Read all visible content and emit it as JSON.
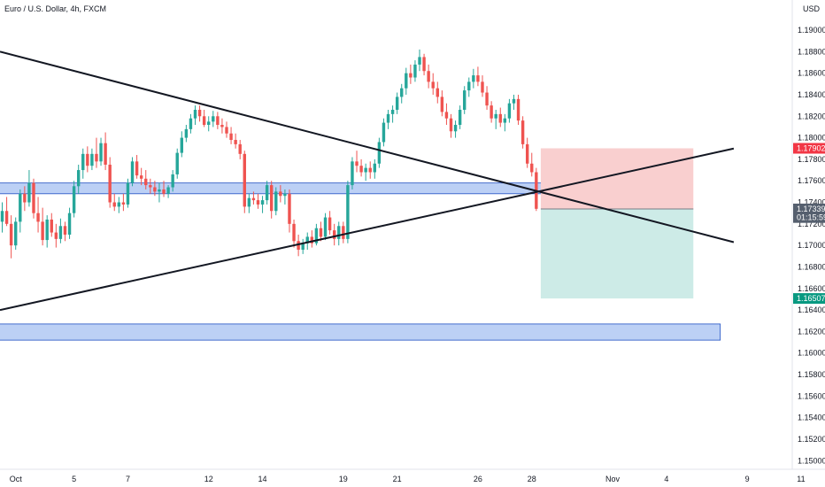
{
  "header": {
    "symbol_title": "Euro / U.S. Dollar, 4h, FXCM",
    "currency": "USD"
  },
  "colors": {
    "up": "#26a69a",
    "down": "#ef5350",
    "zone_fill": "#bcd0f5",
    "zone_stroke": "#1e4fc2",
    "stop_fill": "#f9cfcf",
    "target_fill": "#cdebe7",
    "trendline": "#131722",
    "price_tag": "#555f6e",
    "stop_tag": "#f23645",
    "target_tag": "#089981"
  },
  "chart_data": {
    "type": "candlestick",
    "instrument": "EURUSD",
    "timeframe": "4h",
    "y_axis": {
      "min": 1.1492,
      "max": 1.1928,
      "ticks": [
        1.19,
        1.188,
        1.186,
        1.184,
        1.182,
        1.18,
        1.178,
        1.176,
        1.174,
        1.172,
        1.17,
        1.168,
        1.166,
        1.164,
        1.162,
        1.16,
        1.158,
        1.156,
        1.154,
        1.152,
        1.15
      ],
      "tick_labels": [
        "1.19000",
        "1.18800",
        "1.18600",
        "1.18400",
        "1.18200",
        "1.18000",
        "1.17800",
        "1.17600",
        "1.17400",
        "1.17200",
        "1.17000",
        "1.16800",
        "1.16600",
        "1.16400",
        "1.16200",
        "1.16000",
        "1.15800",
        "1.15600",
        "1.15400",
        "1.15200",
        "1.15000"
      ]
    },
    "x_axis": {
      "min": 0,
      "max": 178,
      "ticks": [
        {
          "label": "Oct",
          "bar": 3
        },
        {
          "label": "5",
          "bar": 16
        },
        {
          "label": "7",
          "bar": 28
        },
        {
          "label": "12",
          "bar": 46
        },
        {
          "label": "14",
          "bar": 58
        },
        {
          "label": "19",
          "bar": 76
        },
        {
          "label": "21",
          "bar": 88
        },
        {
          "label": "26",
          "bar": 106
        },
        {
          "label": "28",
          "bar": 118
        },
        {
          "label": "Nov",
          "bar": 136
        },
        {
          "label": "4",
          "bar": 148
        },
        {
          "label": "9",
          "bar": 166
        },
        {
          "label": "11",
          "bar": 178
        }
      ]
    },
    "candles": [
      [
        1.1722,
        1.174,
        1.1712,
        1.1732
      ],
      [
        1.1732,
        1.1745,
        1.1718,
        1.172
      ],
      [
        1.172,
        1.1728,
        1.1688,
        1.17
      ],
      [
        1.17,
        1.1726,
        1.1696,
        1.1722
      ],
      [
        1.1722,
        1.1752,
        1.1712,
        1.1748
      ],
      [
        1.1748,
        1.1755,
        1.1732,
        1.174
      ],
      [
        1.174,
        1.177,
        1.1736,
        1.1758
      ],
      [
        1.1758,
        1.1762,
        1.1725,
        1.173
      ],
      [
        1.173,
        1.1745,
        1.1712,
        1.1722
      ],
      [
        1.1722,
        1.1735,
        1.17,
        1.1705
      ],
      [
        1.1705,
        1.1728,
        1.1698,
        1.1724
      ],
      [
        1.1724,
        1.173,
        1.1708,
        1.1712
      ],
      [
        1.1712,
        1.172,
        1.1698,
        1.1706
      ],
      [
        1.1706,
        1.1725,
        1.1702,
        1.1718
      ],
      [
        1.1718,
        1.1722,
        1.1704,
        1.171
      ],
      [
        1.171,
        1.1735,
        1.1706,
        1.173
      ],
      [
        1.173,
        1.176,
        1.1726,
        1.1755
      ],
      [
        1.1755,
        1.1775,
        1.1748,
        1.177
      ],
      [
        1.177,
        1.179,
        1.1762,
        1.1785
      ],
      [
        1.1785,
        1.1792,
        1.1768,
        1.1774
      ],
      [
        1.1774,
        1.179,
        1.177,
        1.1785
      ],
      [
        1.1785,
        1.18,
        1.1772,
        1.1778
      ],
      [
        1.1778,
        1.18,
        1.1774,
        1.1795
      ],
      [
        1.1795,
        1.1805,
        1.177,
        1.1775
      ],
      [
        1.1775,
        1.1782,
        1.1735,
        1.174
      ],
      [
        1.174,
        1.1748,
        1.1732,
        1.1736
      ],
      [
        1.1736,
        1.1745,
        1.173,
        1.174
      ],
      [
        1.174,
        1.1748,
        1.1732,
        1.1738
      ],
      [
        1.1738,
        1.1762,
        1.1735,
        1.1758
      ],
      [
        1.1758,
        1.1782,
        1.1755,
        1.1778
      ],
      [
        1.1778,
        1.1784,
        1.1762,
        1.1765
      ],
      [
        1.1765,
        1.1772,
        1.1756,
        1.1762
      ],
      [
        1.1762,
        1.177,
        1.1752,
        1.1756
      ],
      [
        1.1756,
        1.1762,
        1.1748,
        1.1754
      ],
      [
        1.1754,
        1.176,
        1.1746,
        1.175
      ],
      [
        1.175,
        1.1758,
        1.174,
        1.1752
      ],
      [
        1.1752,
        1.176,
        1.1745,
        1.1748
      ],
      [
        1.1748,
        1.1756,
        1.1744,
        1.1754
      ],
      [
        1.1754,
        1.177,
        1.175,
        1.1766
      ],
      [
        1.1766,
        1.179,
        1.1762,
        1.1786
      ],
      [
        1.1786,
        1.1806,
        1.1782,
        1.18
      ],
      [
        1.18,
        1.1812,
        1.1796,
        1.1808
      ],
      [
        1.1808,
        1.1822,
        1.1804,
        1.1818
      ],
      [
        1.1818,
        1.183,
        1.1812,
        1.1826
      ],
      [
        1.1826,
        1.183,
        1.1815,
        1.182
      ],
      [
        1.182,
        1.1826,
        1.181,
        1.1812
      ],
      [
        1.1812,
        1.182,
        1.1806,
        1.1815
      ],
      [
        1.1815,
        1.1825,
        1.181,
        1.182
      ],
      [
        1.182,
        1.1824,
        1.1808,
        1.1812
      ],
      [
        1.1812,
        1.1818,
        1.1804,
        1.181
      ],
      [
        1.181,
        1.1815,
        1.18,
        1.1804
      ],
      [
        1.1804,
        1.181,
        1.1794,
        1.1798
      ],
      [
        1.1798,
        1.1804,
        1.179,
        1.1794
      ],
      [
        1.1794,
        1.1798,
        1.178,
        1.1785
      ],
      [
        1.1785,
        1.1788,
        1.173,
        1.1736
      ],
      [
        1.1736,
        1.1748,
        1.173,
        1.1744
      ],
      [
        1.1744,
        1.175,
        1.1738,
        1.1742
      ],
      [
        1.1742,
        1.1748,
        1.1734,
        1.1738
      ],
      [
        1.1738,
        1.1746,
        1.173,
        1.1742
      ],
      [
        1.1742,
        1.176,
        1.1738,
        1.1756
      ],
      [
        1.1756,
        1.176,
        1.1725,
        1.1732
      ],
      [
        1.1732,
        1.1754,
        1.1728,
        1.175
      ],
      [
        1.175,
        1.1756,
        1.174,
        1.1746
      ],
      [
        1.1746,
        1.1752,
        1.1738,
        1.1748
      ],
      [
        1.1748,
        1.1752,
        1.1712,
        1.172
      ],
      [
        1.172,
        1.1724,
        1.1698,
        1.1704
      ],
      [
        1.1704,
        1.171,
        1.169,
        1.1696
      ],
      [
        1.1696,
        1.1706,
        1.1692,
        1.1702
      ],
      [
        1.1702,
        1.1712,
        1.1696,
        1.1708
      ],
      [
        1.1708,
        1.1714,
        1.1698,
        1.1702
      ],
      [
        1.1702,
        1.172,
        1.17,
        1.1716
      ],
      [
        1.1716,
        1.1722,
        1.1704,
        1.1708
      ],
      [
        1.1708,
        1.173,
        1.1705,
        1.1726
      ],
      [
        1.1726,
        1.1732,
        1.171,
        1.1714
      ],
      [
        1.1714,
        1.172,
        1.17,
        1.1706
      ],
      [
        1.1706,
        1.1722,
        1.17,
        1.1718
      ],
      [
        1.1718,
        1.1722,
        1.1702,
        1.1706
      ],
      [
        1.1706,
        1.176,
        1.1702,
        1.1756
      ],
      [
        1.1756,
        1.1782,
        1.1752,
        1.1778
      ],
      [
        1.1778,
        1.1788,
        1.1768,
        1.1774
      ],
      [
        1.1774,
        1.178,
        1.1764,
        1.1768
      ],
      [
        1.1768,
        1.1776,
        1.176,
        1.1772
      ],
      [
        1.1772,
        1.1778,
        1.1762,
        1.1768
      ],
      [
        1.1768,
        1.178,
        1.1762,
        1.1776
      ],
      [
        1.1776,
        1.18,
        1.1772,
        1.1796
      ],
      [
        1.1796,
        1.1818,
        1.1792,
        1.1814
      ],
      [
        1.1814,
        1.1826,
        1.1808,
        1.1822
      ],
      [
        1.1822,
        1.183,
        1.1814,
        1.1826
      ],
      [
        1.1826,
        1.1842,
        1.1822,
        1.1838
      ],
      [
        1.1838,
        1.185,
        1.1832,
        1.1846
      ],
      [
        1.1846,
        1.1865,
        1.184,
        1.186
      ],
      [
        1.186,
        1.1868,
        1.185,
        1.1856
      ],
      [
        1.1856,
        1.1872,
        1.1852,
        1.1868
      ],
      [
        1.1868,
        1.1882,
        1.1862,
        1.1875
      ],
      [
        1.1875,
        1.1878,
        1.1858,
        1.1862
      ],
      [
        1.1862,
        1.1868,
        1.1846,
        1.1852
      ],
      [
        1.1852,
        1.186,
        1.184,
        1.1846
      ],
      [
        1.1846,
        1.1852,
        1.1832,
        1.1838
      ],
      [
        1.1838,
        1.1844,
        1.182,
        1.1824
      ],
      [
        1.1824,
        1.1832,
        1.1812,
        1.1818
      ],
      [
        1.1818,
        1.1822,
        1.18,
        1.1806
      ],
      [
        1.1806,
        1.1816,
        1.18,
        1.1812
      ],
      [
        1.1812,
        1.183,
        1.1808,
        1.1826
      ],
      [
        1.1826,
        1.1848,
        1.1822,
        1.1844
      ],
      [
        1.1844,
        1.1856,
        1.1838,
        1.1852
      ],
      [
        1.1852,
        1.1864,
        1.1846,
        1.1858
      ],
      [
        1.1858,
        1.1866,
        1.1848,
        1.1852
      ],
      [
        1.1852,
        1.1858,
        1.1838,
        1.1842
      ],
      [
        1.1842,
        1.1848,
        1.1826,
        1.183
      ],
      [
        1.183,
        1.1834,
        1.1814,
        1.1818
      ],
      [
        1.1818,
        1.1826,
        1.1808,
        1.1822
      ],
      [
        1.1822,
        1.1828,
        1.181,
        1.1814
      ],
      [
        1.1814,
        1.1822,
        1.1806,
        1.1818
      ],
      [
        1.1818,
        1.1836,
        1.1814,
        1.1832
      ],
      [
        1.1832,
        1.184,
        1.1826,
        1.1836
      ],
      [
        1.1836,
        1.184,
        1.1812,
        1.1816
      ],
      [
        1.1816,
        1.182,
        1.179,
        1.1794
      ],
      [
        1.1794,
        1.18,
        1.1772,
        1.1776
      ],
      [
        1.1776,
        1.1786,
        1.1764,
        1.1768
      ],
      [
        1.1768,
        1.1772,
        1.1732,
        1.1734
      ]
    ],
    "trendlines": [
      {
        "name": "descending-trendline",
        "from": [
          0,
          1.188
        ],
        "to": [
          163,
          1.1703
        ]
      },
      {
        "name": "ascending-trendline",
        "from": [
          0,
          1.164
        ],
        "to": [
          163,
          1.179
        ]
      }
    ],
    "zones": [
      {
        "name": "resistance-zone",
        "x": [
          0,
          124
        ],
        "y": [
          1.1748,
          1.1758
        ]
      },
      {
        "name": "support-zone",
        "x": [
          0,
          160
        ],
        "y": [
          1.1612,
          1.1627
        ]
      }
    ],
    "position": {
      "type": "short",
      "x": [
        120,
        154
      ],
      "entry": 1.17339,
      "stop": 1.17902,
      "target": 1.16507
    },
    "price_tags": [
      {
        "name": "stop-price-tag",
        "value": 1.17902,
        "label": "1.17902",
        "style": "stop"
      },
      {
        "name": "current-price-tag",
        "value": 1.17339,
        "label": "1.17339",
        "style": "price"
      },
      {
        "name": "countdown-tag",
        "value": 1.17259,
        "label": "01:15:59",
        "style": "price"
      },
      {
        "name": "target-price-tag",
        "value": 1.16507,
        "label": "1.16507",
        "style": "target"
      }
    ]
  }
}
